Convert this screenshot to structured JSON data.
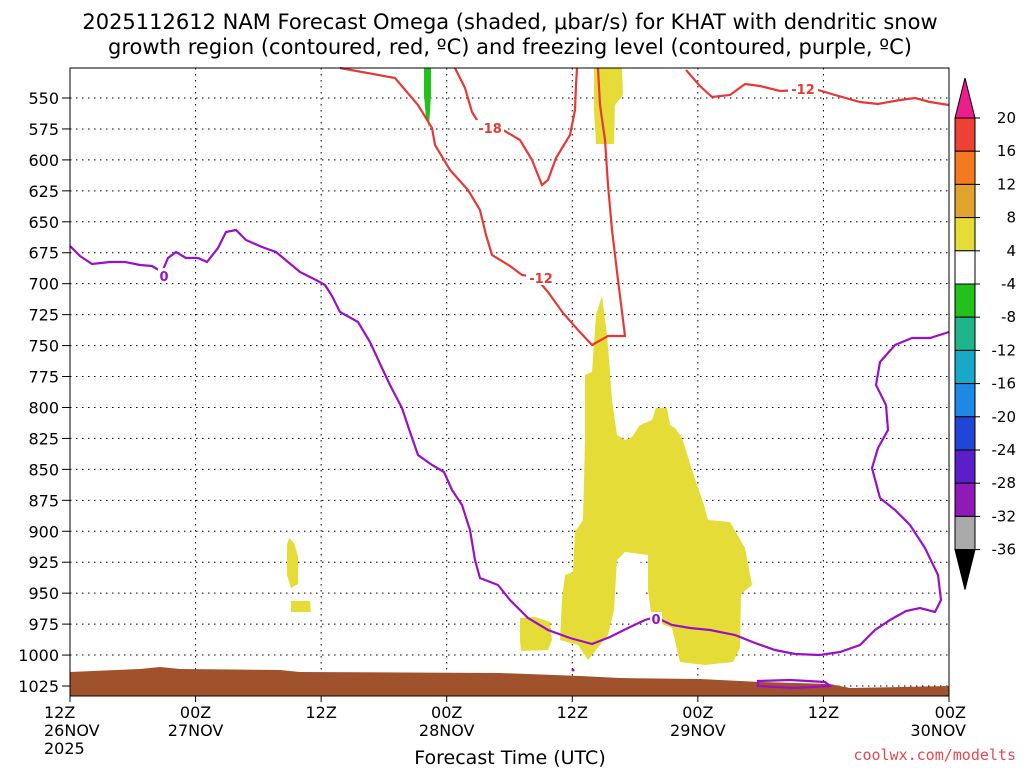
{
  "title_line1": "2025112612 NAM Forecast Omega (shaded, μbar/s) for KHAT with dendritic snow",
  "title_line2": "growth region (contoured, red, ºC) and freezing level (contoured, purple, ºC)",
  "credit": "coolwx.com/modelts",
  "chart_data": {
    "type": "heatmap",
    "xlabel": "Forecast Time (UTC)",
    "ylabel": "",
    "y_axis": "pressure (mb), inverted",
    "ylim": [
      1035,
      530
    ],
    "xlim_hours": [
      0,
      84
    ],
    "grid": true,
    "y_ticks": [
      550,
      575,
      600,
      625,
      650,
      675,
      700,
      725,
      750,
      775,
      800,
      825,
      850,
      875,
      900,
      925,
      950,
      975,
      1000,
      1025
    ],
    "x_ticks": [
      {
        "hour": 0,
        "time": "12Z",
        "date": "26NOV",
        "year": "2025"
      },
      {
        "hour": 12,
        "time": "00Z",
        "date": "27NOV",
        "year": ""
      },
      {
        "hour": 24,
        "time": "12Z",
        "date": "",
        "year": ""
      },
      {
        "hour": 36,
        "time": "00Z",
        "date": "28NOV",
        "year": ""
      },
      {
        "hour": 48,
        "time": "12Z",
        "date": "",
        "year": ""
      },
      {
        "hour": 60,
        "time": "00Z",
        "date": "29NOV",
        "year": ""
      },
      {
        "hour": 72,
        "time": "12Z",
        "date": "",
        "year": ""
      },
      {
        "hour": 84,
        "time": "00Z",
        "date": "30NOV",
        "year": ""
      }
    ],
    "colorbar": {
      "levels": [
        "20",
        "16",
        "12",
        "8",
        "4",
        "-4",
        "-8",
        "-12",
        "-16",
        "-20",
        "-24",
        "-28",
        "-32",
        "-36"
      ],
      "colors": [
        "#ec1e8e",
        "#ef4035",
        "#f37a21",
        "#e0a42c",
        "#e6dc37",
        "#ffffff",
        "#22c11c",
        "#1fb48a",
        "#18a9c8",
        "#1e88e5",
        "#2145d6",
        "#5b1fc9",
        "#8f1ab8",
        "#aaaaaa",
        "#000000"
      ]
    },
    "shaded_regions": [
      {
        "name": "omega 4-8 positive",
        "color": "#e6dc37",
        "approx_x_hours": [
          49.5,
          55
        ],
        "approx_pressure_mb": [
          700,
          1000
        ]
      },
      {
        "name": "omega 4-8 positive",
        "color": "#e6dc37",
        "approx_x_hours": [
          53,
          65
        ],
        "approx_pressure_mb": [
          765,
          1005
        ]
      },
      {
        "name": "omega 4-8 aloft",
        "color": "#e6dc37",
        "approx_x_hours": [
          49.8,
          51.5
        ],
        "approx_pressure_mb": [
          530,
          580
        ]
      },
      {
        "name": "omega 4-8 small",
        "color": "#e6dc37",
        "approx_x_hours": [
          20,
          22
        ],
        "approx_pressure_mb": [
          875,
          955
        ]
      },
      {
        "name": "omega 4-8 small",
        "color": "#e6dc37",
        "approx_x_hours": [
          43,
          46.5
        ],
        "approx_pressure_mb": [
          965,
          1000
        ]
      },
      {
        "name": "omega -4 to -8",
        "color": "#22c11c",
        "approx_x_hours": [
          33.6,
          34.1
        ],
        "approx_pressure_mb": [
          530,
          575
        ]
      }
    ],
    "contours": [
      {
        "name": "dendritic -12",
        "color": "#e53935",
        "label": "-12"
      },
      {
        "name": "dendritic -18",
        "color": "#e53935",
        "label": "-18"
      },
      {
        "name": "freezing level 0",
        "color": "#9a10c8",
        "label": "0"
      }
    ],
    "terrain_color": "#a0522d"
  }
}
